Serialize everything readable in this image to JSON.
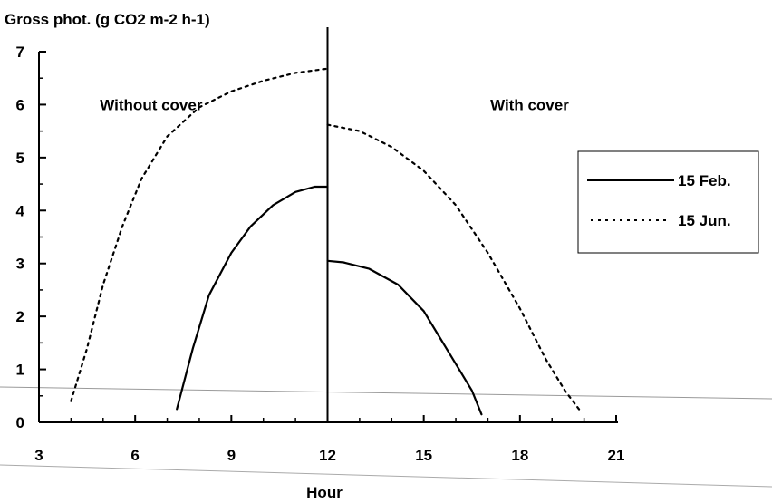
{
  "chart_data": {
    "type": "line",
    "title": "Gross phot. (g CO2 m-2 h-1)",
    "xlabel": "Hour",
    "ylabel": "Gross phot. (g CO2 m-2 h-1)",
    "xlim": [
      3,
      21
    ],
    "ylim": [
      0,
      7
    ],
    "x_ticks": [
      3,
      6,
      9,
      12,
      15,
      18,
      21
    ],
    "y_ticks": [
      0,
      1,
      2,
      3,
      4,
      5,
      6,
      7
    ],
    "annotations": [
      {
        "text": "Without cover",
        "x": 6.5,
        "y": 6.0
      },
      {
        "text": "With cover",
        "x": 18.3,
        "y": 6.0
      }
    ],
    "legend": {
      "placement": "right",
      "entries": [
        {
          "name": "15 Feb.",
          "style": "solid"
        },
        {
          "name": "15 Jun.",
          "style": "dotted"
        }
      ]
    },
    "series": [
      {
        "name": "15 Feb.",
        "style": "solid",
        "segments": [
          [
            [
              7.3,
              0.25
            ],
            [
              7.8,
              1.4
            ],
            [
              8.3,
              2.4
            ],
            [
              9.0,
              3.2
            ],
            [
              9.6,
              3.7
            ],
            [
              10.3,
              4.1
            ],
            [
              11.0,
              4.35
            ],
            [
              11.6,
              4.45
            ],
            [
              12.0,
              4.45
            ]
          ],
          [
            [
              12.0,
              3.05
            ],
            [
              12.5,
              3.02
            ],
            [
              13.3,
              2.9
            ],
            [
              14.2,
              2.6
            ],
            [
              15.0,
              2.1
            ],
            [
              15.5,
              1.6
            ],
            [
              16.0,
              1.1
            ],
            [
              16.5,
              0.6
            ],
            [
              16.8,
              0.15
            ]
          ]
        ]
      },
      {
        "name": "15 Jun.",
        "style": "dotted",
        "segments": [
          [
            [
              4.0,
              0.4
            ],
            [
              4.5,
              1.4
            ],
            [
              5.0,
              2.6
            ],
            [
              5.6,
              3.7
            ],
            [
              6.2,
              4.6
            ],
            [
              7.0,
              5.4
            ],
            [
              8.0,
              5.95
            ],
            [
              9.0,
              6.25
            ],
            [
              10.0,
              6.45
            ],
            [
              11.0,
              6.6
            ],
            [
              12.0,
              6.68
            ]
          ],
          [
            [
              12.0,
              5.62
            ],
            [
              13.0,
              5.5
            ],
            [
              14.0,
              5.2
            ],
            [
              15.0,
              4.75
            ],
            [
              16.0,
              4.1
            ],
            [
              17.0,
              3.2
            ],
            [
              18.0,
              2.15
            ],
            [
              18.8,
              1.2
            ],
            [
              19.4,
              0.6
            ],
            [
              19.9,
              0.2
            ]
          ]
        ]
      }
    ]
  }
}
